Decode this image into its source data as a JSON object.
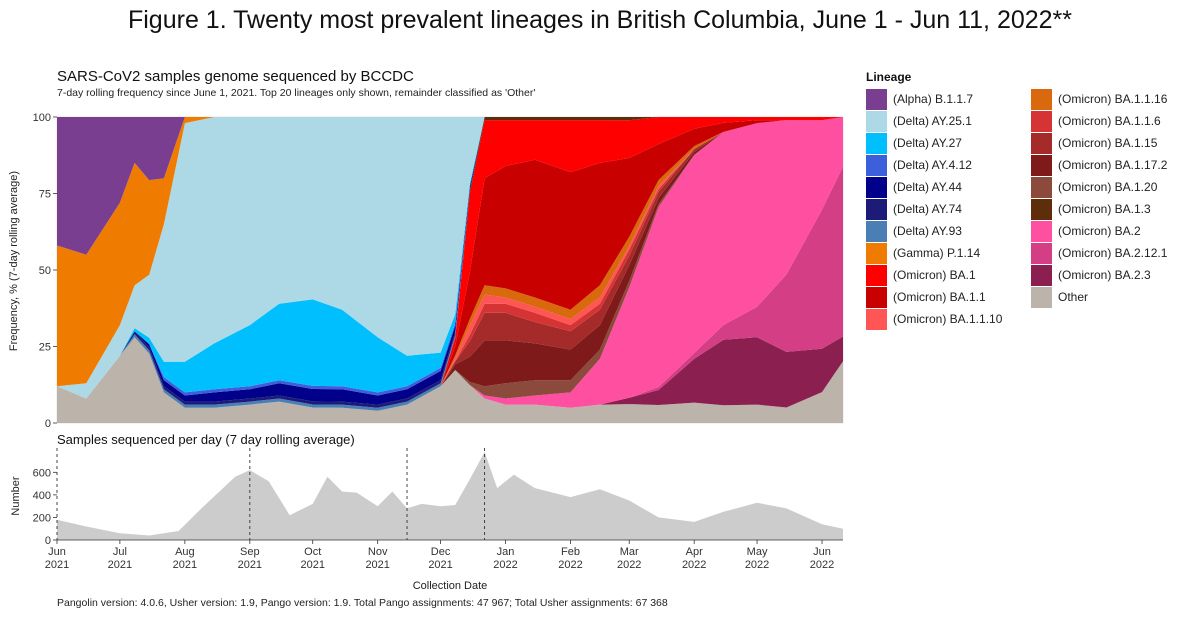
{
  "figure_title": "Figure 1. Twenty most prevalent lineages in British Columbia, June 1 - Jun 11, 2022**",
  "footnote": "Pangolin version: 4.0.6, Usher version: 1.9, Pango version: 1.9. Total Pango assignments: 47 967; Total Usher assignments: 67 368",
  "chart_data": [
    {
      "type": "area",
      "stacking": "percent",
      "title": "SARS-CoV2 samples genome sequenced by BCCDC",
      "subtitle": "7-day rolling frequency since June 1, 2021.  Top 20 lineages only shown, remainder classified as 'Other'",
      "xlabel": "",
      "ylabel": "Frequency, % (7-day rolling average)",
      "x": [
        "2021-06-01",
        "2021-06-15",
        "2021-07-01",
        "2021-07-08",
        "2021-07-15",
        "2021-07-22",
        "2021-08-01",
        "2021-08-15",
        "2021-09-01",
        "2021-09-15",
        "2021-10-01",
        "2021-10-15",
        "2021-11-01",
        "2021-11-15",
        "2021-12-01",
        "2021-12-08",
        "2021-12-15",
        "2021-12-22",
        "2022-01-01",
        "2022-01-15",
        "2022-02-01",
        "2022-02-15",
        "2022-03-01",
        "2022-03-15",
        "2022-04-01",
        "2022-04-15",
        "2022-05-01",
        "2022-05-15",
        "2022-06-01",
        "2022-06-11"
      ],
      "ylim": [
        0,
        100
      ],
      "yticks": [
        "0",
        "25",
        "50",
        "75",
        "100"
      ],
      "series": [
        {
          "name": "Other",
          "color": "#bcb4ab",
          "values": [
            12,
            8,
            22,
            28,
            22,
            10,
            5,
            5,
            6,
            7,
            5,
            5,
            4,
            6,
            12,
            18,
            12,
            8,
            6,
            6,
            5,
            6,
            6,
            6,
            7,
            6,
            6,
            5,
            10,
            20
          ]
        },
        {
          "name": "(Omicron) BA.2.3",
          "color": "#8a1f50",
          "values": [
            0,
            0,
            0,
            0,
            0,
            0,
            0,
            0,
            0,
            0,
            0,
            0,
            0,
            0,
            0,
            0,
            0,
            0,
            0,
            0,
            0,
            0,
            2,
            5,
            15,
            22,
            22,
            18,
            14,
            8
          ]
        },
        {
          "name": "(Omicron) BA.2.12.1",
          "color": "#d33e84",
          "values": [
            0,
            0,
            0,
            0,
            0,
            0,
            0,
            0,
            0,
            0,
            0,
            0,
            0,
            0,
            0,
            0,
            0,
            0,
            0,
            0,
            0,
            0,
            0,
            1,
            2,
            5,
            10,
            25,
            45,
            55
          ]
        },
        {
          "name": "(Omicron) BA.2",
          "color": "#ff4fa0",
          "values": [
            0,
            0,
            0,
            0,
            0,
            0,
            0,
            0,
            0,
            0,
            0,
            0,
            0,
            0,
            0,
            0,
            0,
            1,
            2,
            3,
            5,
            15,
            35,
            60,
            68,
            65,
            60,
            50,
            29,
            16
          ]
        },
        {
          "name": "(Omicron) BA.1.20",
          "color": "#8b4a3c",
          "values": [
            0,
            0,
            0,
            0,
            0,
            0,
            0,
            0,
            0,
            0,
            0,
            0,
            0,
            0,
            0,
            0,
            1,
            3,
            5,
            5,
            4,
            3,
            2,
            1,
            0,
            0,
            0,
            0,
            0,
            0
          ]
        },
        {
          "name": "(Omicron) BA.1.17.2",
          "color": "#7e1a1a",
          "values": [
            0,
            0,
            0,
            0,
            0,
            0,
            0,
            0,
            0,
            0,
            0,
            0,
            0,
            0,
            0,
            2,
            8,
            15,
            14,
            12,
            10,
            8,
            5,
            2,
            1,
            0,
            0,
            0,
            0,
            0
          ]
        },
        {
          "name": "(Omicron) BA.1.15",
          "color": "#a52a2a",
          "values": [
            0,
            0,
            0,
            0,
            0,
            0,
            0,
            0,
            0,
            0,
            0,
            0,
            0,
            0,
            0,
            1,
            5,
            9,
            9,
            7,
            6,
            5,
            3,
            2,
            1,
            0,
            0,
            0,
            0,
            0
          ]
        },
        {
          "name": "(Omicron) BA.1.1.6",
          "color": "#d63434",
          "values": [
            0,
            0,
            0,
            0,
            0,
            0,
            0,
            0,
            0,
            0,
            0,
            0,
            0,
            0,
            0,
            0,
            2,
            3,
            3,
            3,
            2,
            2,
            2,
            1,
            0,
            0,
            0,
            0,
            0,
            0
          ]
        },
        {
          "name": "(Omicron) BA.1.1.10",
          "color": "#ff5555",
          "values": [
            0,
            0,
            0,
            0,
            0,
            0,
            0,
            0,
            0,
            0,
            0,
            0,
            0,
            0,
            0,
            1,
            3,
            3,
            2,
            2,
            2,
            2,
            1,
            1,
            0,
            0,
            0,
            0,
            0,
            0
          ]
        },
        {
          "name": "(Omicron) BA.1.1.16",
          "color": "#d8690c",
          "values": [
            0,
            0,
            0,
            0,
            0,
            0,
            0,
            0,
            0,
            0,
            0,
            0,
            0,
            0,
            0,
            1,
            2,
            3,
            3,
            3,
            3,
            4,
            3,
            2,
            1,
            0,
            0,
            0,
            0,
            0
          ]
        },
        {
          "name": "(Omicron) BA.1.1",
          "color": "#c80000",
          "values": [
            0,
            0,
            0,
            0,
            0,
            0,
            0,
            0,
            0,
            0,
            0,
            0,
            0,
            0,
            0,
            3,
            15,
            35,
            40,
            45,
            45,
            40,
            25,
            12,
            6,
            3,
            1,
            0,
            0,
            0
          ]
        },
        {
          "name": "(Omicron) BA.1",
          "color": "#ff0000",
          "values": [
            0,
            0,
            0,
            0,
            0,
            0,
            0,
            0,
            0,
            0,
            0,
            0,
            0,
            0,
            0,
            3,
            25,
            19,
            15,
            13,
            17,
            14,
            12,
            9,
            4,
            2,
            1,
            1,
            1,
            0
          ]
        },
        {
          "name": "(Omicron) BA.1.3",
          "color": "#5e2e0a",
          "values": [
            0,
            0,
            0,
            0,
            0,
            0,
            0,
            0,
            0,
            0,
            0,
            0,
            0,
            0,
            0,
            0,
            1,
            1,
            1,
            1,
            1,
            1,
            1,
            0,
            0,
            0,
            0,
            0,
            0,
            0
          ]
        },
        {
          "name": "(Delta) AY.93",
          "color": "#4a7fb5",
          "values": [
            0,
            0,
            0,
            1,
            1,
            1,
            1,
            1,
            1,
            1,
            1,
            1,
            1,
            1,
            1,
            1,
            0,
            0,
            0,
            0,
            0,
            0,
            0,
            0,
            0,
            0,
            0,
            0,
            0,
            0
          ]
        },
        {
          "name": "(Delta) AY.74",
          "color": "#1c1c78",
          "values": [
            0,
            0,
            0,
            1,
            1,
            1,
            1,
            1,
            1,
            1,
            1,
            1,
            1,
            1,
            1,
            1,
            0,
            0,
            0,
            0,
            0,
            0,
            0,
            0,
            0,
            0,
            0,
            0,
            0,
            0
          ]
        },
        {
          "name": "(Delta) AY.44",
          "color": "#00008b",
          "values": [
            0,
            0,
            0,
            0,
            1,
            2,
            2,
            3,
            3,
            4,
            4,
            4,
            3,
            3,
            3,
            2,
            1,
            0,
            0,
            0,
            0,
            0,
            0,
            0,
            0,
            0,
            0,
            0,
            0,
            0
          ]
        },
        {
          "name": "(Delta) AY.4.12",
          "color": "#3d5fdc",
          "values": [
            0,
            0,
            0,
            0,
            0,
            1,
            1,
            1,
            1,
            1,
            1,
            1,
            1,
            1,
            1,
            1,
            0,
            0,
            0,
            0,
            0,
            0,
            0,
            0,
            0,
            0,
            0,
            0,
            0,
            0
          ]
        },
        {
          "name": "(Delta) AY.27",
          "color": "#00bfff",
          "values": [
            0,
            0,
            0,
            1,
            2,
            5,
            10,
            15,
            20,
            25,
            28,
            25,
            18,
            10,
            5,
            3,
            1,
            0,
            0,
            0,
            0,
            0,
            0,
            0,
            0,
            0,
            0,
            0,
            0,
            0
          ]
        },
        {
          "name": "(Delta) AY.25.1",
          "color": "#add8e6",
          "values": [
            0,
            5,
            10,
            14,
            20,
            45,
            78,
            74,
            68,
            61,
            59,
            63,
            72,
            78,
            77,
            67,
            21,
            0,
            0,
            0,
            0,
            0,
            0,
            0,
            0,
            0,
            0,
            0,
            0,
            0
          ]
        },
        {
          "name": "(Gamma) P.1.14",
          "color": "#ef7c00",
          "values": [
            46,
            42,
            40,
            40,
            30,
            15,
            2,
            0,
            0,
            0,
            0,
            0,
            0,
            0,
            0,
            0,
            0,
            0,
            0,
            0,
            0,
            0,
            0,
            0,
            0,
            0,
            0,
            0,
            0,
            0
          ]
        },
        {
          "name": "(Alpha) B.1.1.7",
          "color": "#7a3e91",
          "values": [
            42,
            45,
            28,
            15,
            20,
            20,
            0,
            0,
            0,
            0,
            0,
            0,
            0,
            0,
            0,
            0,
            0,
            0,
            0,
            0,
            0,
            0,
            0,
            0,
            0,
            0,
            0,
            0,
            0,
            0
          ]
        }
      ]
    },
    {
      "type": "area",
      "title": "Samples sequenced per day (7 day rolling average)",
      "xlabel": "Collection Date",
      "ylabel": "Number",
      "color": "#cccccc",
      "x": [
        "2021-06-01",
        "2021-06-15",
        "2021-07-01",
        "2021-07-15",
        "2021-07-29",
        "2021-08-10",
        "2021-08-25",
        "2021-09-01",
        "2021-09-10",
        "2021-09-20",
        "2021-10-01",
        "2021-10-08",
        "2021-10-15",
        "2021-10-22",
        "2021-11-01",
        "2021-11-08",
        "2021-11-15",
        "2021-11-22",
        "2021-12-01",
        "2021-12-08",
        "2021-12-15",
        "2021-12-22",
        "2021-12-28",
        "2022-01-05",
        "2022-01-15",
        "2022-02-01",
        "2022-02-15",
        "2022-03-01",
        "2022-03-15",
        "2022-04-01",
        "2022-04-15",
        "2022-05-01",
        "2022-05-15",
        "2022-06-01",
        "2022-06-11"
      ],
      "values": [
        180,
        120,
        60,
        40,
        80,
        300,
        560,
        620,
        520,
        220,
        320,
        560,
        430,
        420,
        300,
        430,
        280,
        320,
        300,
        310,
        540,
        780,
        460,
        580,
        460,
        380,
        450,
        350,
        200,
        160,
        250,
        330,
        280,
        140,
        100
      ],
      "ylim": [
        0,
        780
      ],
      "yticks": [
        "0",
        "200",
        "400",
        "600"
      ],
      "reference_dates": [
        "2021-06-01",
        "2021-09-01",
        "2021-11-15",
        "2021-12-22"
      ]
    }
  ],
  "x_axis_ticks": [
    {
      "month": "Jun",
      "year": "2021",
      "date": "2021-06-01"
    },
    {
      "month": "Jul",
      "year": "2021",
      "date": "2021-07-01"
    },
    {
      "month": "Aug",
      "year": "2021",
      "date": "2021-08-01"
    },
    {
      "month": "Sep",
      "year": "2021",
      "date": "2021-09-01"
    },
    {
      "month": "Oct",
      "year": "2021",
      "date": "2021-10-01"
    },
    {
      "month": "Nov",
      "year": "2021",
      "date": "2021-11-01"
    },
    {
      "month": "Dec",
      "year": "2021",
      "date": "2021-12-01"
    },
    {
      "month": "Jan",
      "year": "2022",
      "date": "2022-01-01"
    },
    {
      "month": "Feb",
      "year": "2022",
      "date": "2022-02-01"
    },
    {
      "month": "Mar",
      "year": "2022",
      "date": "2022-03-01"
    },
    {
      "month": "Apr",
      "year": "2022",
      "date": "2022-04-01"
    },
    {
      "month": "May",
      "year": "2022",
      "date": "2022-05-01"
    },
    {
      "month": "Jun",
      "year": "2022",
      "date": "2022-06-01"
    }
  ],
  "legend": {
    "title": "Lineage",
    "columns": [
      [
        {
          "label": "(Alpha) B.1.1.7",
          "color": "#7a3e91"
        },
        {
          "label": "(Delta) AY.25.1",
          "color": "#add8e6"
        },
        {
          "label": "(Delta) AY.27",
          "color": "#00bfff"
        },
        {
          "label": "(Delta) AY.4.12",
          "color": "#3d5fdc"
        },
        {
          "label": "(Delta) AY.44",
          "color": "#00008b"
        },
        {
          "label": "(Delta) AY.74",
          "color": "#1c1c78"
        },
        {
          "label": "(Delta) AY.93",
          "color": "#4a7fb5"
        },
        {
          "label": "(Gamma) P.1.14",
          "color": "#ef7c00"
        },
        {
          "label": "(Omicron) BA.1",
          "color": "#ff0000"
        },
        {
          "label": "(Omicron) BA.1.1",
          "color": "#c80000"
        },
        {
          "label": "(Omicron) BA.1.1.10",
          "color": "#ff5555"
        }
      ],
      [
        {
          "label": "(Omicron) BA.1.1.16",
          "color": "#d8690c"
        },
        {
          "label": "(Omicron) BA.1.1.6",
          "color": "#d63434"
        },
        {
          "label": "(Omicron) BA.1.15",
          "color": "#a52a2a"
        },
        {
          "label": "(Omicron) BA.1.17.2",
          "color": "#7e1a1a"
        },
        {
          "label": "(Omicron) BA.1.20",
          "color": "#8b4a3c"
        },
        {
          "label": "(Omicron) BA.1.3",
          "color": "#5e2e0a"
        },
        {
          "label": "(Omicron) BA.2",
          "color": "#ff4fa0"
        },
        {
          "label": "(Omicron) BA.2.12.1",
          "color": "#d33e84"
        },
        {
          "label": "(Omicron) BA.2.3",
          "color": "#8a1f50"
        },
        {
          "label": "Other",
          "color": "#bcb4ab"
        }
      ]
    ]
  }
}
